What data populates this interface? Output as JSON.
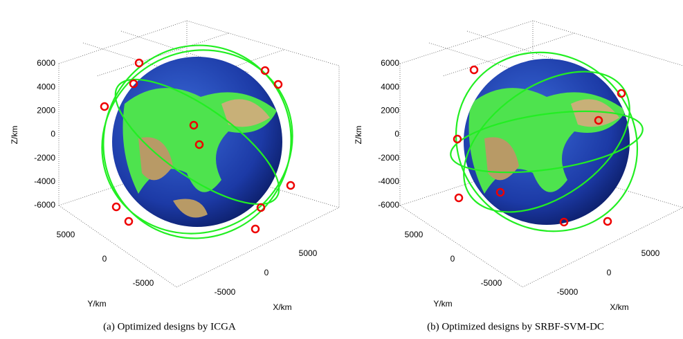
{
  "panels": [
    {
      "caption": "(a) Optimized designs by ICGA",
      "zlabel": "Z/km",
      "ylabel": "Y/km",
      "xlabel": "X/km",
      "zticks": [
        6000,
        4000,
        2000,
        0,
        -2000,
        -4000,
        -6000
      ],
      "yticks": [
        5000,
        0,
        -5000
      ],
      "xticks": [
        -5000,
        0,
        5000
      ]
    },
    {
      "caption": "(b) Optimized designs by SRBF-SVM-DC",
      "zlabel": "Z/km",
      "ylabel": "Y/km",
      "xlabel": "X/km",
      "zticks": [
        6000,
        4000,
        2000,
        0,
        -2000,
        -4000,
        -6000
      ],
      "yticks": [
        5000,
        0,
        -5000
      ],
      "xticks": [
        -5000,
        0,
        5000
      ]
    }
  ]
}
